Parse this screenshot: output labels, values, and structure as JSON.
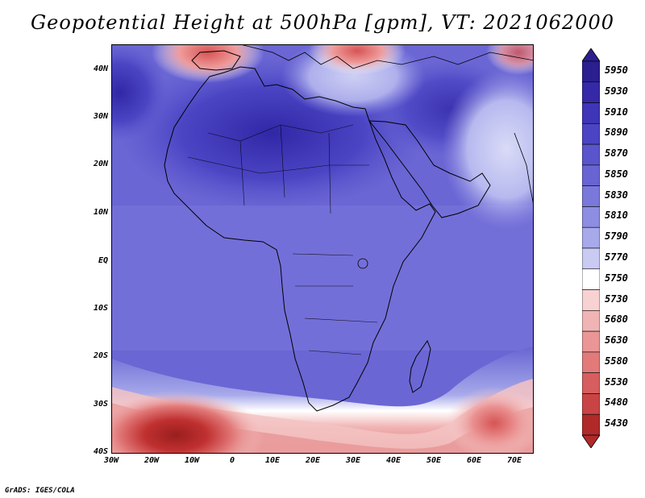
{
  "title": "Geopotential Height at 500hPa [gpm], VT: 2021062000",
  "credit": "GrADS: IGES/COLA",
  "map": {
    "lat_labels": [
      "40N",
      "30N",
      "20N",
      "10N",
      "EQ",
      "10S",
      "20S",
      "30S",
      "40S"
    ],
    "lon_labels": [
      "30W",
      "20W",
      "10W",
      "0",
      "10E",
      "20E",
      "30E",
      "40E",
      "50E",
      "60E",
      "70E"
    ],
    "lat_range": [
      -40,
      45
    ],
    "lon_range": [
      -30,
      75
    ]
  },
  "colorbar": {
    "levels": [
      "5950",
      "5930",
      "5910",
      "5890",
      "5870",
      "5850",
      "5830",
      "5810",
      "5790",
      "5770",
      "5750",
      "5730",
      "5680",
      "5630",
      "5580",
      "5530",
      "5480",
      "5430"
    ],
    "colors": [
      "#2b1f8f",
      "#3529a8",
      "#3f35b7",
      "#4b45c4",
      "#5a55cc",
      "#6865d3",
      "#7a78da",
      "#8d8de2",
      "#a7a9ea",
      "#c9cbf3",
      "#ffffff",
      "#f8d2d2",
      "#f1b4b4",
      "#ea9696",
      "#e27a7a",
      "#d75e5e",
      "#c94545",
      "#b02a2a"
    ]
  }
}
